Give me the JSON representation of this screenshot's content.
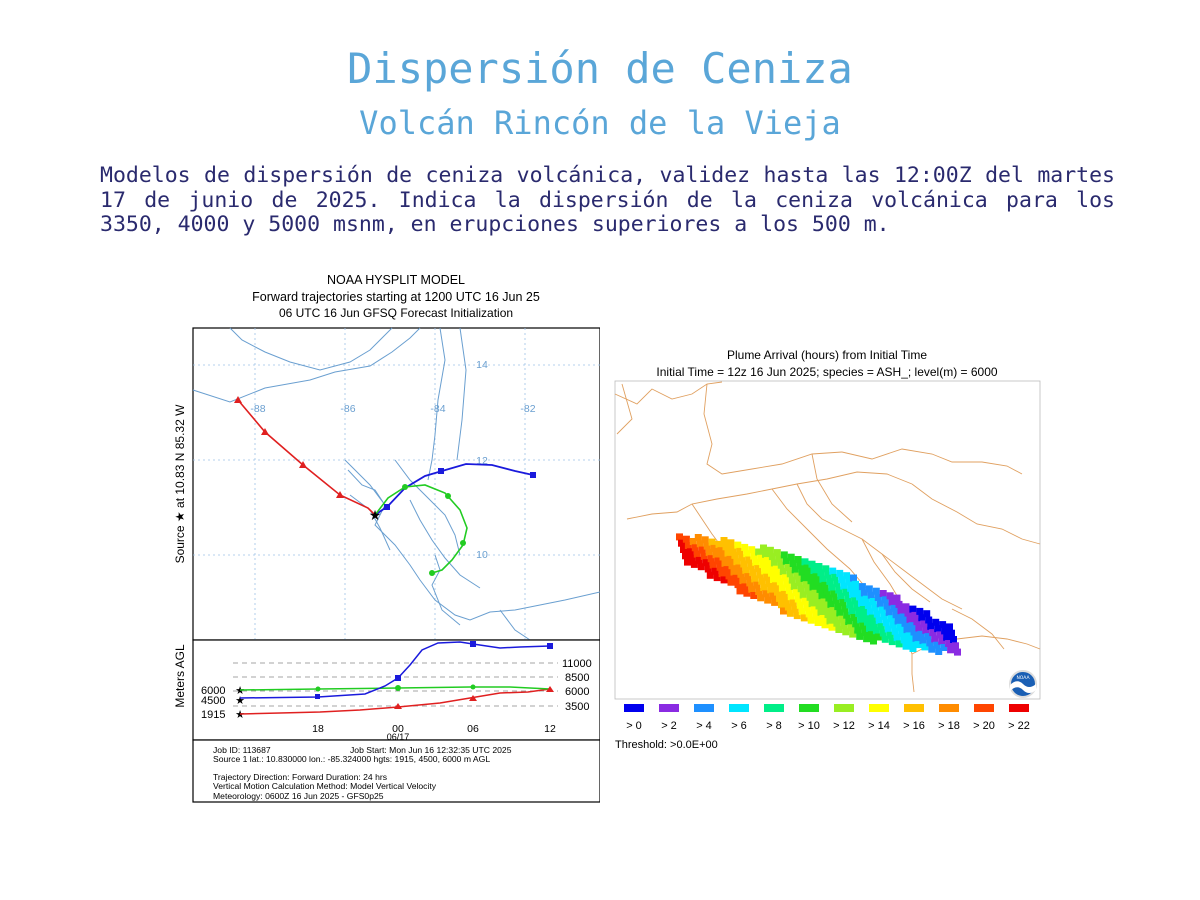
{
  "header": {
    "title": "Dispersión de Ceniza",
    "subtitle": "Volcán Rincón de la Vieja",
    "description": "Modelos de dispersión de ceniza volcánica, validez hasta las 12:00Z del martes 17 de junio de 2025. Indica la dispersión de la ceniza volcánica para los 3350, 4000 y 5000 msnm, en erupciones superiores a los 500 m."
  },
  "trajectory": {
    "title_1": "NOAA HYSPLIT MODEL",
    "title_2": "Forward trajectories starting at 1200 UTC 16 Jun 25",
    "title_3": "06 UTC 16 Jun    GFSQ  Forecast Initialization",
    "source_label": "Source ★  at   10.83 N   85.32 W",
    "lon_ticks": [
      "-88",
      "-86",
      "-84",
      "-82"
    ],
    "lat_ticks": [
      "14",
      "12",
      "10"
    ],
    "y_axis_label": "Meters AGL",
    "height_levels_right": [
      "11000",
      "8500",
      "6000",
      "3500"
    ],
    "height_levels_left": [
      "6000",
      "4500",
      "1915"
    ],
    "time_ticks": [
      "18",
      "00",
      "06",
      "12"
    ],
    "date_label": "06/17",
    "colors": {
      "red": "#e02020",
      "blue": "#1a1adc",
      "green": "#22cc22",
      "map": "#6a9fd0"
    },
    "info": {
      "job_id": "Job ID: 113687",
      "job_start": "Job Start: Mon Jun 16 12:32:35 UTC 2025",
      "source_line": "Source 1 lat.: 10.830000  lon.: -85.324000  hgts: 1915, 4500, 6000 m AGL",
      "direction": "Trajectory Direction: Forward      Duration: 24 hrs",
      "vertical": "Vertical Motion Calculation Method:     Model Vertical Velocity",
      "meteorology": "Meteorology: 0600Z 16 Jun 2025 - GFS0p25"
    }
  },
  "plume": {
    "title_1": "Plume Arrival (hours) from Initial Time",
    "title_2": "Initial Time = 12z 16 Jun 2025;  species = ASH_;  level(m) =  6000",
    "legend": [
      {
        "label": "> 0",
        "color": "#0000ee"
      },
      {
        "label": "> 2",
        "color": "#8a2be2"
      },
      {
        "label": "> 4",
        "color": "#1e90ff"
      },
      {
        "label": "> 6",
        "color": "#00e5ff"
      },
      {
        "label": "> 8",
        "color": "#00ee88"
      },
      {
        "label": "> 10",
        "color": "#22dd22"
      },
      {
        "label": "> 12",
        "color": "#99ee22"
      },
      {
        "label": "> 14",
        "color": "#ffff00"
      },
      {
        "label": "> 16",
        "color": "#ffc000"
      },
      {
        "label": "> 18",
        "color": "#ff8c00"
      },
      {
        "label": "> 20",
        "color": "#ff4500"
      },
      {
        "label": "> 22",
        "color": "#ee0000"
      }
    ],
    "threshold": "Threshold: >0.0E+00",
    "logo_label": "NOAA"
  }
}
